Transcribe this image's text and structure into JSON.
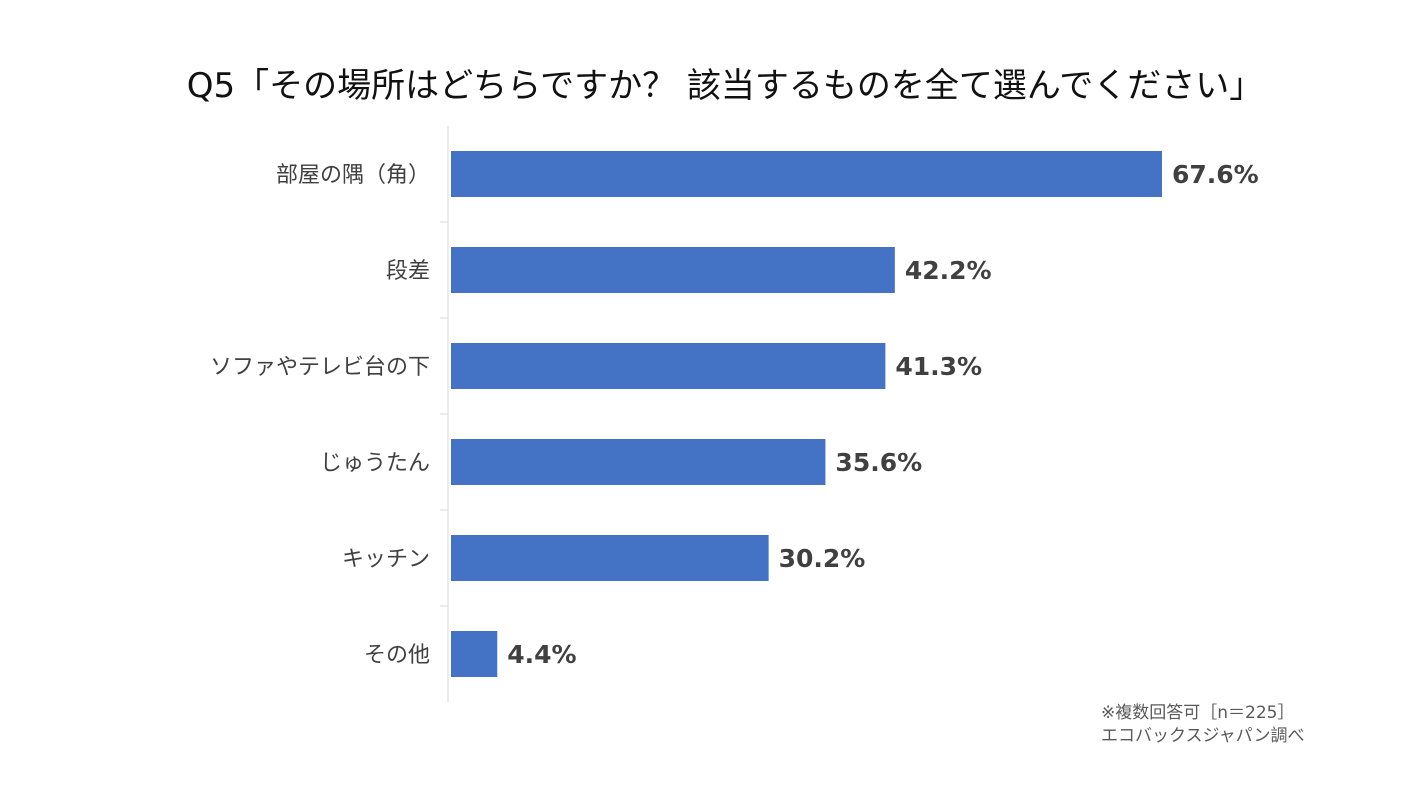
{
  "chart_data": {
    "type": "bar",
    "orientation": "horizontal",
    "title": "Q5「その場所はどちらですか？ 該当するものを全て選んでください」",
    "categories": [
      "部屋の隅（角）",
      "段差",
      "ソファやテレビ台の下",
      "じゅうたん",
      "キッチン",
      "その他"
    ],
    "values": [
      67.6,
      42.2,
      41.3,
      35.6,
      30.2,
      4.4
    ],
    "value_labels": [
      "67.6%",
      "42.2%",
      "41.3%",
      "35.6%",
      "30.2%",
      "4.4%"
    ],
    "unit": "%",
    "xlim": [
      0,
      100
    ],
    "grid": false,
    "legend": "none",
    "bar_color": "#4472C4",
    "notes": [
      "※複数回答可［n＝225］",
      "エコバックスジャパン調べ"
    ]
  }
}
